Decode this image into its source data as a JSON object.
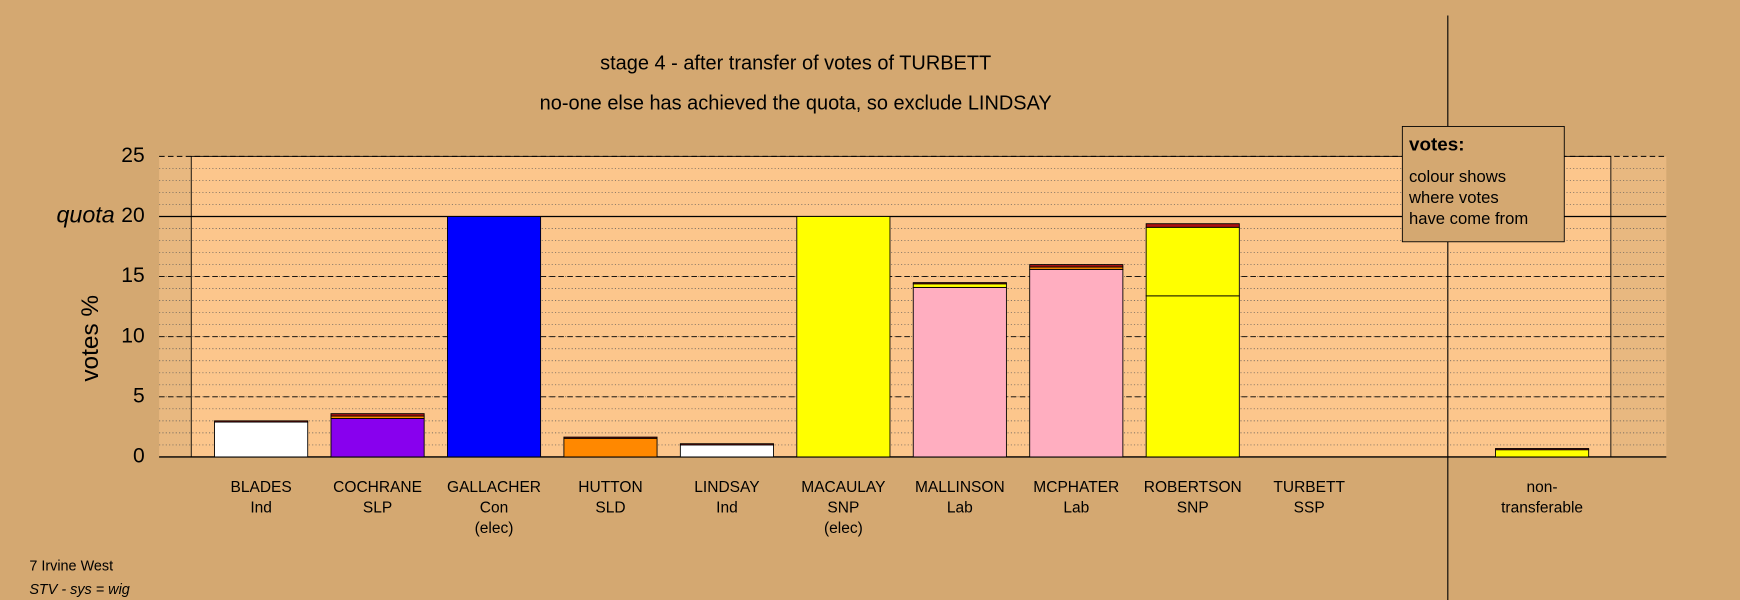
{
  "chart_data": {
    "type": "stacked-bar",
    "title": "stage 4 - after transfer of votes of TURBETT",
    "subtitle": "no-one else has achieved the quota, so exclude LINDSAY",
    "ylabel": "votes %",
    "categories": [
      [
        "BLADES",
        "Ind"
      ],
      [
        "COCHRANE",
        "SLP"
      ],
      [
        "GALLACHER",
        "Con",
        "(elec)"
      ],
      [
        "HUTTON",
        "SLD"
      ],
      [
        "LINDSAY",
        "Ind"
      ],
      [
        "MACAULAY",
        "SNP",
        "(elec)"
      ],
      [
        "MALLINSON",
        "Lab"
      ],
      [
        "MCPHATER",
        "Lab"
      ],
      [
        "ROBERTSON",
        "SNP"
      ],
      [
        "TURBETT",
        "SSP"
      ],
      [
        "non-",
        "transferable"
      ]
    ],
    "series": [
      {
        "colors": [
          "#ffffff",
          "#8800ee",
          "#0000ff",
          "#ff8800",
          "#ffffff",
          "#ffff00",
          "#ffaec0",
          "#ffaec0",
          "#ffff00",
          "#ffffff",
          "#ffff00"
        ],
        "values": [
          2.9,
          3.2,
          20,
          1.55,
          1.0,
          20,
          14.1,
          15.6,
          13.4,
          0,
          0
        ]
      },
      {
        "color": "#ffff00",
        "values": [
          0,
          0,
          0,
          0,
          0,
          0,
          0.3,
          0,
          5.7,
          0,
          0.6
        ]
      },
      {
        "color": "#ff8800",
        "values": [
          0,
          0.2,
          0,
          0,
          0,
          0,
          0,
          0.2,
          0,
          0,
          0
        ]
      },
      {
        "color": "#aa1111",
        "values": [
          0.1,
          0.2,
          0,
          0.1,
          0.1,
          0,
          0.1,
          0.2,
          0.3,
          0,
          0.1
        ]
      }
    ],
    "ylim": [
      0,
      25
    ],
    "yticks": [
      0,
      5,
      10,
      15,
      20,
      25
    ],
    "minor_grid_step": 1,
    "quota": {
      "value": 20,
      "label": "quota"
    },
    "legend_box": {
      "title": "votes:",
      "lines": [
        "colour shows",
        "where votes",
        "have come from"
      ]
    },
    "footer": [
      "7 Irvine West",
      "STV - sys = wig"
    ]
  }
}
